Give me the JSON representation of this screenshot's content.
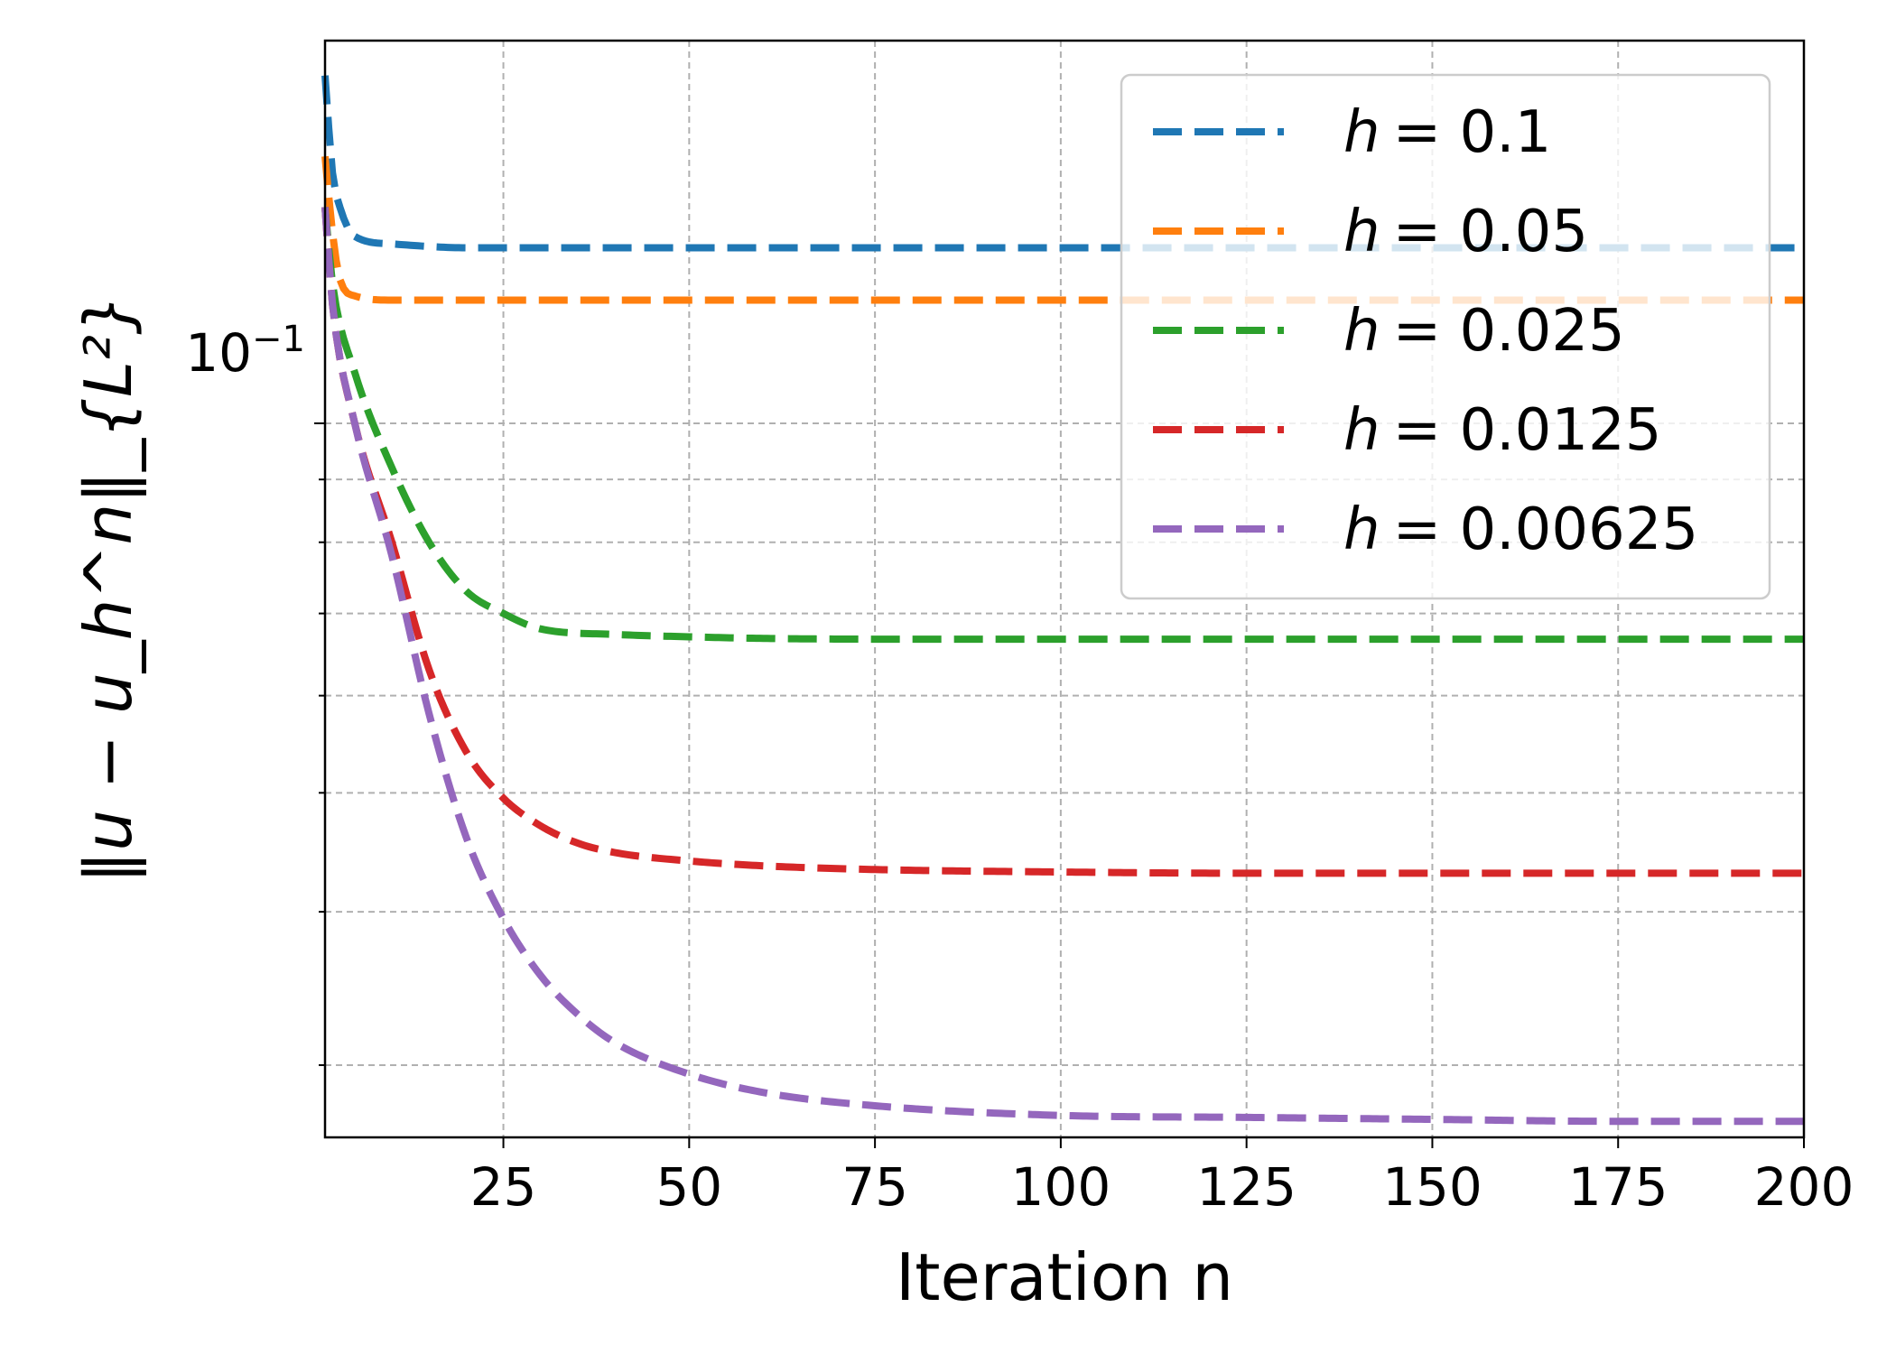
{
  "chart_data": {
    "type": "line",
    "xlabel": "Iteration n",
    "ylabel": "‖u − u_h^n‖_{L²}",
    "yscale": "log",
    "xlim": [
      1,
      200
    ],
    "ylim": [
      0.0262,
      0.205
    ],
    "xticks": [
      25,
      50,
      75,
      100,
      125,
      150,
      175,
      200
    ],
    "xtick_labels": [
      "25",
      "50",
      "75",
      "100",
      "125",
      "150",
      "175",
      "200"
    ],
    "ytick_major_label": "10",
    "ytick_major_exponent": "−1",
    "grid": true,
    "legend_position": "top-right",
    "series": [
      {
        "name": "h = 0.1",
        "symbol": "h",
        "value_text": "= 0.1",
        "color": "#1f77b4",
        "x": [
          1,
          2,
          3,
          5,
          10,
          20,
          200
        ],
        "y": [
          0.192,
          0.16,
          0.15,
          0.142,
          0.14,
          0.139,
          0.139
        ]
      },
      {
        "name": "h = 0.05",
        "symbol": "h",
        "value_text": "= 0.05",
        "color": "#ff7f0e",
        "x": [
          1,
          2,
          3,
          5,
          10,
          20,
          200
        ],
        "y": [
          0.165,
          0.143,
          0.131,
          0.127,
          0.126,
          0.126,
          0.126
        ]
      },
      {
        "name": "h = 0.025",
        "symbol": "h",
        "value_text": "= 0.025",
        "color": "#2ca02c",
        "x": [
          1,
          2,
          5,
          10,
          15,
          20,
          25,
          30,
          40,
          50,
          60,
          80,
          100,
          200
        ],
        "y": [
          0.15,
          0.13,
          0.11,
          0.092,
          0.08,
          0.073,
          0.07,
          0.068,
          0.0673,
          0.067,
          0.0668,
          0.0667,
          0.0667,
          0.0667
        ]
      },
      {
        "name": "h = 0.0125",
        "symbol": "h",
        "value_text": "= 0.0125",
        "color": "#d62728",
        "x": [
          1,
          2,
          5,
          10,
          15,
          20,
          25,
          30,
          35,
          40,
          50,
          60,
          75,
          100,
          125,
          150,
          200
        ],
        "y": [
          0.15,
          0.125,
          0.1,
          0.08,
          0.063,
          0.054,
          0.0495,
          0.047,
          0.0455,
          0.0447,
          0.044,
          0.0436,
          0.0433,
          0.0431,
          0.043,
          0.043,
          0.043
        ]
      },
      {
        "name": "h = 0.00625",
        "symbol": "h",
        "value_text": "= 0.00625",
        "color": "#9467bd",
        "x": [
          1,
          2,
          5,
          10,
          15,
          20,
          25,
          30,
          35,
          40,
          50,
          60,
          75,
          100,
          125,
          150,
          175,
          200
        ],
        "y": [
          0.15,
          0.125,
          0.1,
          0.078,
          0.058,
          0.046,
          0.0395,
          0.0355,
          0.033,
          0.0313,
          0.0295,
          0.0285,
          0.0278,
          0.0273,
          0.0272,
          0.0271,
          0.027,
          0.027
        ]
      }
    ]
  }
}
